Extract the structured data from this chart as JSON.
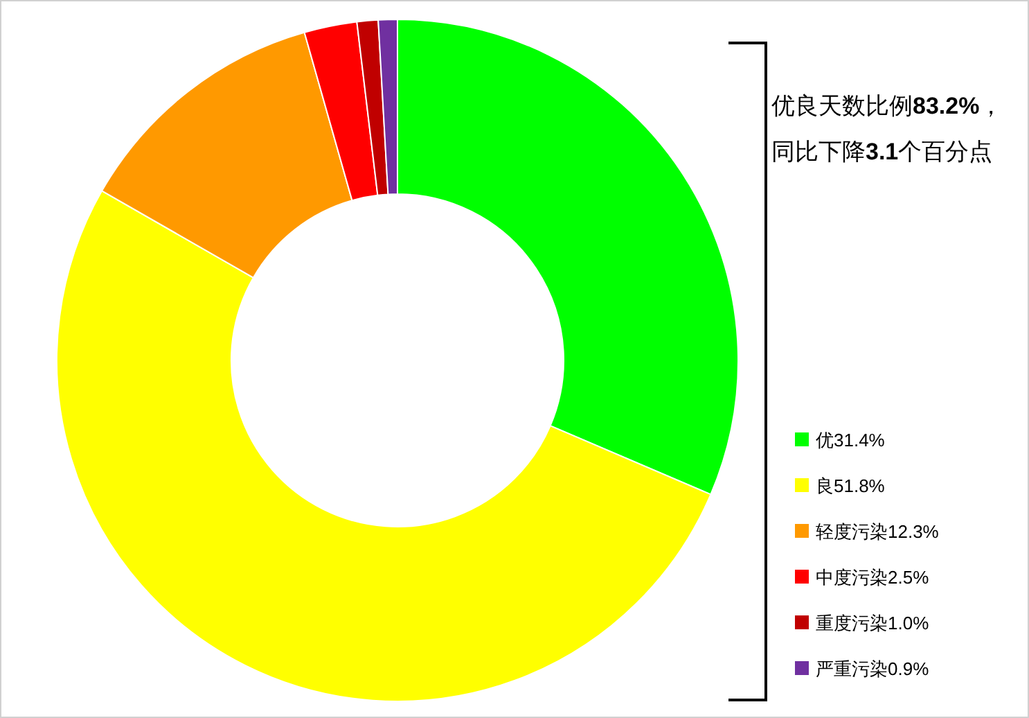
{
  "chart_data": {
    "type": "donut",
    "categories": [
      "优",
      "良",
      "轻度污染",
      "中度污染",
      "重度污染",
      "严重污染"
    ],
    "values": [
      31.4,
      51.8,
      12.3,
      2.5,
      1.0,
      0.9
    ],
    "value_labels": [
      "31.4%",
      "51.8%",
      "12.3%",
      "2.5%",
      "1.0%",
      "0.9%"
    ],
    "colors": [
      "#00ff00",
      "#ffff00",
      "#ff9900",
      "#ff0000",
      "#c00000",
      "#7030a0"
    ],
    "legend": "right",
    "annotations": [
      "优良天数比例83.2%，",
      "同比下降3.1个百分点"
    ]
  }
}
